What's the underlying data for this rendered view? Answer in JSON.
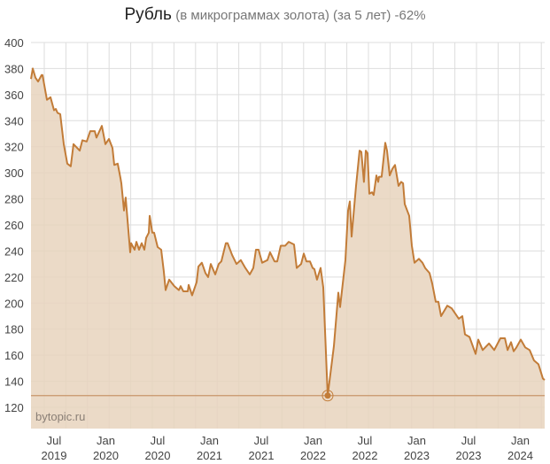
{
  "chart_data": {
    "type": "area",
    "title": "Рубль",
    "subtitle": "(в микрограммах золота) (за 5 лет) -62%",
    "xlabel": "",
    "ylabel": "",
    "xlim": [
      2019.278,
      2024.235
    ],
    "ylim": [
      104,
      400
    ],
    "yticks": [
      120,
      140,
      160,
      180,
      200,
      220,
      240,
      260,
      280,
      300,
      320,
      340,
      360,
      380,
      400
    ],
    "xticks": [
      {
        "x": 2019.5,
        "label1": "Jul",
        "label2": "2019"
      },
      {
        "x": 2020.0,
        "label1": "Jan",
        "label2": "2020"
      },
      {
        "x": 2020.5,
        "label1": "Jul",
        "label2": "2020"
      },
      {
        "x": 2021.0,
        "label1": "Jan",
        "label2": "2021"
      },
      {
        "x": 2021.5,
        "label1": "Jul",
        "label2": "2021"
      },
      {
        "x": 2022.0,
        "label1": "Jan",
        "label2": "2022"
      },
      {
        "x": 2022.5,
        "label1": "Jul",
        "label2": "2022"
      },
      {
        "x": 2023.0,
        "label1": "Jan",
        "label2": "2023"
      },
      {
        "x": 2023.5,
        "label1": "Jul",
        "label2": "2023"
      },
      {
        "x": 2024.0,
        "label1": "Jan",
        "label2": "2024"
      }
    ],
    "grid": true,
    "min_marker": {
      "x": 2022.141,
      "y": 129
    },
    "watermark": "bytopic.ru",
    "colors": {
      "line": "#c27c38",
      "fill": "#e8d3bd",
      "min_line": "#c8956a"
    },
    "x": [
      2019.278,
      2019.295,
      2019.321,
      2019.346,
      2019.38,
      2019.389,
      2019.432,
      2019.466,
      2019.5,
      2019.517,
      2019.534,
      2019.56,
      2019.594,
      2019.628,
      2019.662,
      2019.688,
      2019.748,
      2019.774,
      2019.816,
      2019.85,
      2019.893,
      2019.91,
      2019.962,
      2019.996,
      2020.03,
      2020.064,
      2020.081,
      2020.115,
      2020.141,
      2020.15,
      2020.175,
      2020.192,
      2020.235,
      2020.244,
      2020.278,
      2020.295,
      2020.321,
      2020.346,
      2020.372,
      2020.389,
      2020.415,
      2020.423,
      2020.449,
      2020.466,
      2020.5,
      2020.534,
      2020.56,
      2020.577,
      2020.611,
      2020.662,
      2020.705,
      2020.722,
      2020.748,
      2020.791,
      2020.799,
      2020.833,
      2020.876,
      2020.893,
      2020.927,
      2020.962,
      2020.987,
      2021.013,
      2021.056,
      2021.09,
      2021.115,
      2021.158,
      2021.175,
      2021.218,
      2021.261,
      2021.303,
      2021.346,
      2021.389,
      2021.423,
      2021.449,
      2021.474,
      2021.509,
      2021.56,
      2021.585,
      2021.628,
      2021.654,
      2021.688,
      2021.731,
      2021.765,
      2021.816,
      2021.842,
      2021.885,
      2021.91,
      2021.936,
      2021.97,
      2021.996,
      2022.013,
      2022.038,
      2022.073,
      2022.098,
      2022.141,
      2022.201,
      2022.244,
      2022.261,
      2022.312,
      2022.338,
      2022.355,
      2022.372,
      2022.415,
      2022.449,
      2022.466,
      2022.491,
      2022.509,
      2022.526,
      2022.543,
      2022.568,
      2022.585,
      2022.611,
      2022.628,
      2022.637,
      2022.662,
      2022.697,
      2022.714,
      2022.739,
      2022.765,
      2022.791,
      2022.825,
      2022.85,
      2022.868,
      2022.885,
      2022.927,
      2022.953,
      2022.979,
      2023.021,
      2023.056,
      2023.081,
      2023.124,
      2023.15,
      2023.184,
      2023.209,
      2023.235,
      2023.295,
      2023.338,
      2023.406,
      2023.44,
      2023.466,
      2023.509,
      2023.568,
      2023.594,
      2023.637,
      2023.697,
      2023.748,
      2023.808,
      2023.851,
      2023.877,
      2023.91,
      2023.936,
      2023.962,
      2024.004,
      2024.047,
      2024.09,
      2024.132,
      2024.175,
      2024.218,
      2024.235
    ],
    "y": [
      372,
      380,
      373,
      370,
      375,
      375,
      356,
      358,
      348,
      349,
      346,
      345,
      322,
      307,
      305,
      322,
      317,
      325,
      324,
      332,
      332,
      327,
      336,
      322,
      326,
      319,
      306,
      307,
      296,
      292,
      271,
      281,
      239,
      246,
      241,
      247,
      241,
      246,
      241,
      250,
      254,
      267,
      254,
      254,
      243,
      241,
      224,
      210,
      218,
      213,
      210,
      213,
      209,
      209,
      214,
      206,
      216,
      228,
      231,
      223,
      220,
      230,
      222,
      230,
      232,
      246,
      246,
      237,
      230,
      233,
      227,
      222,
      227,
      241,
      241,
      231,
      233,
      239,
      232,
      232,
      244,
      244,
      247,
      245,
      227,
      230,
      238,
      232,
      232,
      227,
      226,
      218,
      227,
      212,
      129,
      167,
      208,
      197,
      233,
      271,
      278,
      251,
      290,
      317,
      316,
      293,
      317,
      315,
      284,
      285,
      283,
      298,
      293,
      297,
      297,
      323,
      317,
      298,
      303,
      306,
      290,
      293,
      292,
      276,
      267,
      244,
      231,
      234,
      231,
      227,
      223,
      215,
      201,
      201,
      190,
      198,
      196,
      188,
      190,
      176,
      174,
      161,
      172,
      164,
      169,
      164,
      173,
      173,
      164,
      170,
      163,
      166,
      172,
      166,
      164,
      156,
      153,
      142,
      141
    ]
  }
}
